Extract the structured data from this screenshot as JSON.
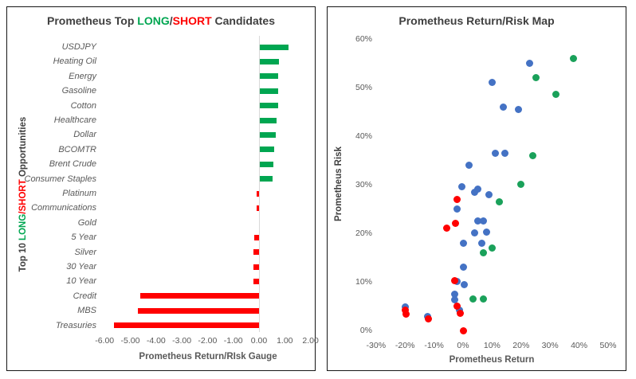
{
  "colors": {
    "bar_long": "#00A651",
    "bar_short": "#FF0000",
    "dot_other": "#4472C4",
    "dot_long": "#1AA15A",
    "dot_short": "#FF0000",
    "title_text": "#404040",
    "axis_text": "#595959",
    "zero_line": "#D9D9D9"
  },
  "chart_data": [
    {
      "type": "bar",
      "orientation": "horizontal",
      "title": "Prometheus Top LONG/SHORT Candidates",
      "title_parts": {
        "prefix": "Prometheus Top ",
        "long": "LONG",
        "slash": "/",
        "short": "SHORT",
        "suffix": " Candidates"
      },
      "ylabel": "Top 10 LONG/SHORT Opportunities",
      "ylabel_parts": {
        "prefix": "Top 10  ",
        "long": "LONG",
        "slash": "/",
        "short": "SHORT",
        "suffix": " Opportunities"
      },
      "xlabel": "Prometheus Return/RIsk Gauge",
      "categories": [
        "USDJPY",
        "Heating Oil",
        "Energy",
        "Gasoline",
        "Cotton",
        "Healthcare",
        "Dollar",
        "BCOMTR",
        "Brent Crude",
        "Consumer Staples",
        "Platinum",
        "Communications",
        "Gold",
        "5 Year",
        "Silver",
        "30 Year",
        "10 Year",
        "Credit",
        "MBS",
        "Treasuries"
      ],
      "values": [
        1.1,
        0.75,
        0.72,
        0.72,
        0.7,
        0.65,
        0.63,
        0.55,
        0.52,
        0.5,
        -0.1,
        -0.1,
        0.0,
        -0.2,
        -0.22,
        -0.22,
        -0.23,
        -4.62,
        -4.7,
        -5.65
      ],
      "color_rule": "positive bars green (long), negative bars red (short)",
      "xlim": [
        -6.5,
        2.2
      ],
      "xticks": [
        -6,
        -5,
        -4,
        -3,
        -2,
        -1,
        0,
        1,
        2
      ],
      "xtick_labels": [
        "-6.00",
        "-5.00",
        "-4.00",
        "-3.00",
        "-2.00",
        "-1.00",
        "0.00",
        "1.00",
        "2.00"
      ],
      "grid": false
    },
    {
      "type": "scatter",
      "title": "Prometheus Return/Risk Map",
      "xlabel": "Prometheus Return",
      "ylabel": "Prometheus Risk",
      "xlim": [
        -30,
        50
      ],
      "ylim": [
        0,
        60
      ],
      "xticks": [
        -30,
        -20,
        -10,
        0,
        10,
        20,
        30,
        40,
        50
      ],
      "xtick_labels": [
        "-30%",
        "-20%",
        "-10%",
        "0%",
        "10%",
        "20%",
        "30%",
        "40%",
        "50%"
      ],
      "yticks": [
        0,
        10,
        20,
        30,
        40,
        50,
        60
      ],
      "ytick_labels": [
        "0%",
        "10%",
        "20%",
        "30%",
        "40%",
        "50%",
        "60%"
      ],
      "grid": false,
      "legend": "none",
      "series": [
        {
          "name": "other",
          "color": "#4472C4",
          "points": [
            [
              23,
              55
            ],
            [
              10,
              51
            ],
            [
              14,
              46
            ],
            [
              19,
              45.5
            ],
            [
              11,
              36.5
            ],
            [
              14.5,
              36.5
            ],
            [
              2,
              34
            ],
            [
              -0.5,
              29.5
            ],
            [
              4,
              28.5
            ],
            [
              5,
              29
            ],
            [
              9,
              28
            ],
            [
              -2,
              25
            ],
            [
              5,
              22.5
            ],
            [
              7,
              22.5
            ],
            [
              4,
              20
            ],
            [
              8,
              20.3
            ],
            [
              0,
              18
            ],
            [
              6.5,
              18
            ],
            [
              0,
              13
            ],
            [
              -2,
              10
            ],
            [
              0.5,
              9.5
            ],
            [
              -3,
              7.5
            ],
            [
              -3,
              6.3
            ],
            [
              -19.8,
              4.8
            ],
            [
              -12.2,
              2.8
            ],
            [
              -1.2,
              4.2
            ]
          ]
        },
        {
          "name": "top-long",
          "color": "#1AA15A",
          "points": [
            [
              38,
              56
            ],
            [
              25,
              52
            ],
            [
              32,
              48.5
            ],
            [
              24,
              36
            ],
            [
              20,
              30
            ],
            [
              12.6,
              26.5
            ],
            [
              10,
              17
            ],
            [
              7,
              16
            ],
            [
              7,
              6.5
            ],
            [
              3.5,
              6.5
            ]
          ]
        },
        {
          "name": "top-short",
          "color": "#FF0000",
          "points": [
            [
              -2,
              27
            ],
            [
              -2.5,
              22
            ],
            [
              -5.5,
              21
            ],
            [
              -3,
              10.3
            ],
            [
              -2,
              5
            ],
            [
              -20,
              4.2
            ],
            [
              -19.7,
              3.4
            ],
            [
              -1,
              3.5
            ],
            [
              -12,
              2.4
            ],
            [
              0,
              0
            ]
          ]
        }
      ]
    }
  ]
}
